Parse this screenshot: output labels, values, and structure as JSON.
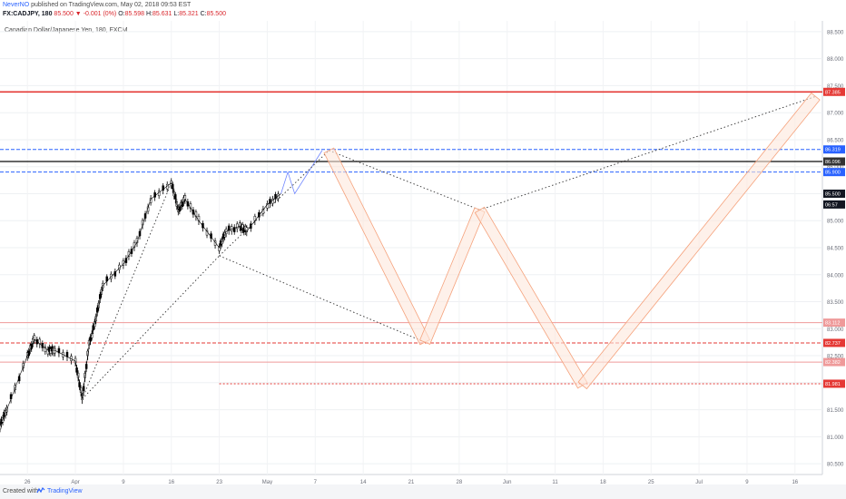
{
  "header": {
    "author": "NeverNO",
    "published": "published on TradingView.com, May 02, 2018 09:53 EST",
    "symbol": "FX:CADJPY, 180",
    "price": "85.500",
    "change": "-0.001 (0%)",
    "ohlc": {
      "O": "85.598",
      "H": "85.631",
      "L": "85.321",
      "C": "85.500"
    }
  },
  "footer": {
    "created": "Created with",
    "brand": "TradingView"
  },
  "chart_data": {
    "type": "line",
    "title": "Canadian Dollar/Japanese Yen, 180, FXCM",
    "x_ticks": [
      "26",
      "Apr",
      "9",
      "16",
      "23",
      "May",
      "7",
      "14",
      "21",
      "28",
      "Jun",
      "11",
      "18",
      "25",
      "Jul",
      "9",
      "16"
    ],
    "y_ticks": [
      80.5,
      81.0,
      81.5,
      82.0,
      82.5,
      83.0,
      83.5,
      84.0,
      84.5,
      85.0,
      85.5,
      86.0,
      86.5,
      87.0,
      87.5,
      88.0,
      88.5
    ],
    "ylim": [
      80.3,
      88.7
    ],
    "price_series": [
      [
        "Mar 22",
        81.2
      ],
      [
        "Mar 23",
        81.5
      ],
      [
        "Mar 26",
        82.5
      ],
      [
        "Mar 27",
        82.8
      ],
      [
        "Mar 29",
        82.6
      ],
      [
        "Mar 30",
        82.6
      ],
      [
        "Apr 2",
        82.4
      ],
      [
        "Apr 3",
        81.7
      ],
      [
        "Apr 4",
        82.7
      ],
      [
        "Apr 5",
        83.2
      ],
      [
        "Apr 6",
        83.8
      ],
      [
        "Apr 9",
        84.2
      ],
      [
        "Apr 11",
        84.6
      ],
      [
        "Apr 13",
        85.4
      ],
      [
        "Apr 16",
        85.7
      ],
      [
        "Apr 17",
        85.2
      ],
      [
        "Apr 18",
        85.4
      ],
      [
        "Apr 20",
        85.0
      ],
      [
        "Apr 23",
        84.5
      ],
      [
        "Apr 24",
        84.8
      ],
      [
        "Apr 26",
        84.9
      ],
      [
        "Apr 27",
        84.8
      ],
      [
        "Apr 30",
        85.3
      ],
      [
        "May 2",
        85.5
      ]
    ],
    "projection_path": [
      [
        "May 2",
        85.5
      ],
      [
        "May 3",
        85.9
      ],
      [
        "May 4",
        85.5
      ],
      [
        "May 8",
        86.3
      ]
    ],
    "horizontal_levels": [
      {
        "label": "87.385",
        "value": 87.385,
        "color": "#e53935",
        "style": "solid"
      },
      {
        "label": "86.319",
        "value": 86.319,
        "color": "#2962ff",
        "style": "dashed"
      },
      {
        "label": "86.096",
        "value": 86.096,
        "color": "#333333",
        "style": "solid"
      },
      {
        "label": "85.900",
        "value": 85.9,
        "color": "#2962ff",
        "style": "dashed"
      },
      {
        "label": "83.112",
        "value": 83.112,
        "color": "#ef9a9a",
        "style": "solid"
      },
      {
        "label": "82.737",
        "value": 82.737,
        "color": "#e53935",
        "style": "dashed"
      },
      {
        "label": "82.382",
        "value": 82.382,
        "color": "#ef9a9a",
        "style": "solid"
      },
      {
        "label": "81.981",
        "value": 81.981,
        "color": "#e53935",
        "style": "dotted"
      }
    ],
    "price_labels": [
      {
        "label": "85.500",
        "value": 85.5,
        "color": "#131722"
      },
      {
        "label": "06:57",
        "value": 85.3,
        "color": "#131722"
      }
    ],
    "trend_lines": [
      [
        [
          "Apr 3",
          81.7
        ],
        [
          "Apr 23",
          84.35
        ]
      ],
      [
        [
          "Apr 23",
          84.35
        ],
        [
          "May 23",
          82.75
        ]
      ],
      [
        [
          "Apr 3",
          81.7
        ],
        [
          "Apr 16",
          85.7
        ]
      ],
      [
        [
          "Apr 23",
          84.35
        ],
        [
          "May 9",
          86.3
        ]
      ],
      [
        [
          "May 9",
          86.3
        ],
        [
          "May 31",
          85.2
        ]
      ],
      [
        [
          "May 31",
          85.2
        ],
        [
          "Jul 19",
          87.3
        ]
      ]
    ],
    "zigzag_path": [
      [
        "May 9",
        86.3
      ],
      [
        "May 23",
        82.75
      ],
      [
        "May 31",
        85.2
      ],
      [
        "Jun 15",
        81.95
      ],
      [
        "Jul 19",
        87.3
      ]
    ],
    "grid": true,
    "colors": {
      "up": "#000000",
      "down": "#000000",
      "zigzag": "#f5a27c",
      "zigzag_fill": "#fde7dc"
    }
  }
}
